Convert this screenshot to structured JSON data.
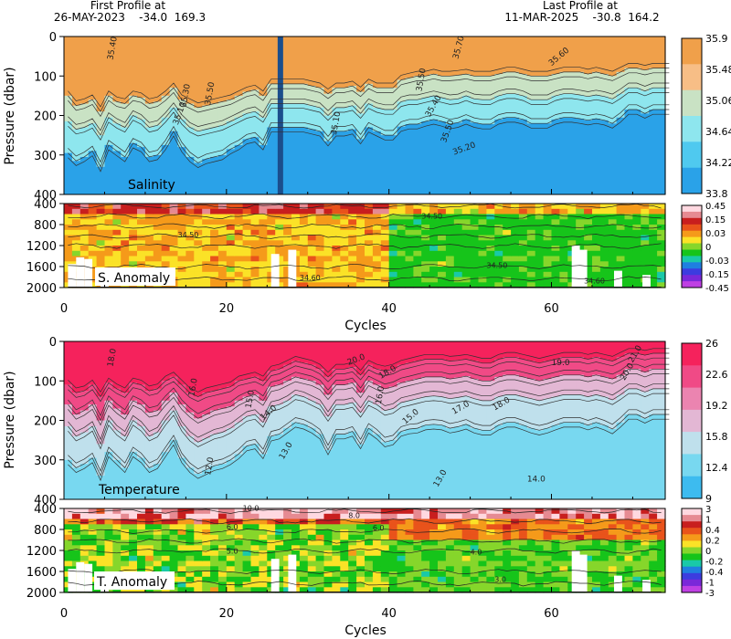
{
  "header": {
    "first_label": "First Profile at",
    "first_value": "26-MAY-2023    -34.0  169.3",
    "last_label": "Last Profile at",
    "last_value": "11-MAR-2025    -30.8  164.2"
  },
  "chart_data": [
    {
      "id": "salinity",
      "type": "heatmap",
      "title": "Salinity",
      "ylabel": "Pressure (dbar)",
      "xlim": [
        0,
        74
      ],
      "ylim": [
        400,
        0
      ],
      "yticks": [
        0,
        100,
        200,
        300,
        400
      ],
      "colorbar_ticks": [
        "35.9",
        "35.48",
        "35.06",
        "34.64",
        "34.22",
        "33.8"
      ],
      "colorbar_colors": [
        "#f0a04a",
        "#f7be86",
        "#c9e2c4",
        "#8ee6ee",
        "#4fc9ef",
        "#2aa2e8"
      ],
      "contour_levels": [
        "35.40",
        "35.50",
        "35.70",
        "35.60",
        "35.30",
        "35.10",
        "35.20"
      ],
      "contour_labels": [
        {
          "text": "35.40",
          "x": 6,
          "y": 60,
          "rot": -80
        },
        {
          "text": "35.70",
          "x": 48.5,
          "y": 58,
          "rot": -75
        },
        {
          "text": "35.60",
          "x": 60,
          "y": 75,
          "rot": -40
        },
        {
          "text": "35.50",
          "x": 44,
          "y": 140,
          "rot": -80
        },
        {
          "text": "35.30",
          "x": 15,
          "y": 180,
          "rot": -80
        },
        {
          "text": "35.50",
          "x": 18,
          "y": 175,
          "rot": -80
        },
        {
          "text": "35.10",
          "x": 14,
          "y": 225,
          "rot": -70
        },
        {
          "text": "35.40",
          "x": 45,
          "y": 205,
          "rot": -60
        },
        {
          "text": "35.50",
          "x": 47,
          "y": 270,
          "rot": -70
        },
        {
          "text": "35.20",
          "x": 48,
          "y": 300,
          "rot": -20
        },
        {
          "text": "35.10",
          "x": 33.5,
          "y": 250,
          "rot": -80
        }
      ],
      "depth_series": [
        {
          "level": "35.5",
          "values": [
            150,
            175,
            170,
            160,
            190,
            150,
            165,
            170,
            150,
            155,
            170,
            165,
            150,
            130,
            160,
            170,
            180,
            175,
            170,
            165,
            160,
            150,
            140,
            135,
            150,
            120,
            120,
            120,
            120,
            120,
            125,
            130,
            145,
            130,
            130,
            125,
            140,
            120,
            130,
            130,
            130,
            110,
            105,
            100,
            100,
            95,
            100,
            100,
            98,
            95,
            100,
            100,
            100,
            95,
            90,
            90,
            95,
            100,
            100,
            100,
            95,
            90,
            90,
            90,
            95,
            90,
            95,
            100,
            90,
            80,
            80,
            85,
            80,
            80,
            80
          ]
        },
        {
          "level": "35.3",
          "values": [
            215,
            235,
            230,
            220,
            250,
            205,
            220,
            230,
            200,
            210,
            230,
            225,
            205,
            180,
            210,
            230,
            240,
            235,
            230,
            225,
            215,
            205,
            195,
            190,
            205,
            170,
            170,
            170,
            170,
            170,
            175,
            180,
            200,
            180,
            180,
            175,
            195,
            170,
            180,
            185,
            185,
            165,
            160,
            160,
            155,
            150,
            155,
            160,
            158,
            150,
            158,
            160,
            160,
            150,
            145,
            145,
            150,
            160,
            160,
            160,
            150,
            145,
            145,
            148,
            152,
            148,
            152,
            158,
            145,
            130,
            130,
            138,
            130,
            130,
            130
          ]
        },
        {
          "level": "35.1",
          "values": [
            295,
            315,
            305,
            290,
            330,
            275,
            290,
            305,
            270,
            280,
            305,
            300,
            275,
            240,
            280,
            305,
            320,
            310,
            305,
            300,
            285,
            275,
            260,
            255,
            275,
            230,
            230,
            230,
            230,
            230,
            235,
            240,
            265,
            240,
            240,
            235,
            260,
            230,
            240,
            250,
            250,
            228,
            222,
            222,
            215,
            210,
            215,
            222,
            218,
            210,
            218,
            222,
            222,
            210,
            205,
            205,
            210,
            220,
            220,
            220,
            210,
            205,
            205,
            208,
            212,
            208,
            212,
            220,
            205,
            185,
            185,
            195,
            185,
            185,
            185
          ]
        }
      ]
    },
    {
      "id": "salinity_anomaly",
      "type": "heatmap",
      "title": "S. Anomaly",
      "ylim": [
        2000,
        400
      ],
      "yticks": [
        400,
        800,
        1200,
        1600,
        2000
      ],
      "colorbar_ticks": [
        "0.45",
        "0.15",
        "0.03",
        "0",
        "-0.03",
        "-0.15",
        "-0.45"
      ],
      "colorbar_colors": [
        "#ffd8e0",
        "#e68a92",
        "#c81e1e",
        "#e9531b",
        "#f59a1a",
        "#fbe227",
        "#86d62b",
        "#16c41a",
        "#19c9a8",
        "#1f7fe0",
        "#3c3cdf",
        "#7a28d9",
        "#bf40e3"
      ],
      "contour_labels": [
        {
          "text": "34.50",
          "x": 14,
          "y": 1040,
          "rot": 0
        },
        {
          "text": "34.60",
          "x": 29,
          "y": 1860,
          "rot": 0
        },
        {
          "text": "34.50",
          "x": 44,
          "y": 690,
          "rot": 0
        },
        {
          "text": "34.50",
          "x": 52,
          "y": 1630,
          "rot": 0
        },
        {
          "text": "34.60",
          "x": 64,
          "y": 1920,
          "rot": 0
        }
      ]
    },
    {
      "id": "temperature",
      "type": "heatmap",
      "title": "Temperature",
      "ylabel": "Pressure (dbar)",
      "xlim": [
        0,
        74
      ],
      "ylim": [
        400,
        0
      ],
      "yticks": [
        0,
        100,
        200,
        300,
        400
      ],
      "colorbar_ticks": [
        "26",
        "22.6",
        "19.2",
        "15.8",
        "12.4",
        "9"
      ],
      "colorbar_colors": [
        "#f5225c",
        "#f04a86",
        "#eb84b0",
        "#e3b7d4",
        "#bfe0ec",
        "#78d8f0",
        "#3dbbef"
      ],
      "contour_labels": [
        {
          "text": "18.0",
          "x": 6,
          "y": 65,
          "rot": -80
        },
        {
          "text": "16.0",
          "x": 16,
          "y": 140,
          "rot": -80
        },
        {
          "text": "15.0",
          "x": 23,
          "y": 170,
          "rot": -80
        },
        {
          "text": "14.0",
          "x": 24.5,
          "y": 200,
          "rot": -40
        },
        {
          "text": "13.0",
          "x": 27,
          "y": 300,
          "rot": -60
        },
        {
          "text": "12.0",
          "x": 18,
          "y": 340,
          "rot": -80
        },
        {
          "text": "20.0",
          "x": 35,
          "y": 60,
          "rot": -20
        },
        {
          "text": "18.0",
          "x": 39,
          "y": 95,
          "rot": -30
        },
        {
          "text": "16.0",
          "x": 39,
          "y": 160,
          "rot": -80
        },
        {
          "text": "15.0",
          "x": 42,
          "y": 210,
          "rot": -40
        },
        {
          "text": "19.0",
          "x": 60,
          "y": 60,
          "rot": 0
        },
        {
          "text": "18.0",
          "x": 53,
          "y": 175,
          "rot": -30
        },
        {
          "text": "17.0",
          "x": 48,
          "y": 185,
          "rot": -30
        },
        {
          "text": "14.0",
          "x": 57,
          "y": 355,
          "rot": 0
        },
        {
          "text": "13.0",
          "x": 46,
          "y": 370,
          "rot": -60
        },
        {
          "text": "21.0",
          "x": 70,
          "y": 55,
          "rot": -60
        },
        {
          "text": "20.0",
          "x": 69,
          "y": 100,
          "rot": -60
        }
      ],
      "depth_series": [
        {
          "level": "18",
          "values": [
            110,
            130,
            125,
            110,
            140,
            105,
            120,
            130,
            105,
            110,
            125,
            120,
            100,
            90,
            110,
            130,
            140,
            130,
            125,
            120,
            115,
            100,
            95,
            90,
            100,
            75,
            70,
            60,
            50,
            55,
            60,
            70,
            90,
            70,
            70,
            65,
            85,
            60,
            70,
            75,
            70,
            60,
            55,
            50,
            45,
            45,
            45,
            50,
            48,
            45,
            50,
            55,
            55,
            45,
            40,
            40,
            45,
            50,
            55,
            50,
            45,
            40,
            40,
            40,
            45,
            40,
            45,
            50,
            40,
            30,
            30,
            35,
            30,
            30,
            30
          ]
        },
        {
          "level": "16",
          "values": [
            160,
            185,
            175,
            160,
            200,
            150,
            170,
            185,
            150,
            160,
            180,
            175,
            150,
            130,
            160,
            180,
            195,
            185,
            175,
            170,
            165,
            150,
            140,
            135,
            150,
            115,
            110,
            100,
            90,
            95,
            100,
            110,
            135,
            110,
            110,
            105,
            130,
            100,
            110,
            120,
            115,
            105,
            100,
            95,
            90,
            90,
            90,
            95,
            92,
            88,
            95,
            100,
            100,
            90,
            85,
            85,
            90,
            95,
            100,
            95,
            90,
            85,
            85,
            85,
            90,
            85,
            90,
            95,
            85,
            70,
            70,
            78,
            70,
            70,
            70
          ]
        },
        {
          "level": "14",
          "values": [
            215,
            240,
            230,
            215,
            260,
            200,
            225,
            240,
            200,
            215,
            240,
            230,
            200,
            175,
            215,
            240,
            255,
            245,
            235,
            230,
            220,
            205,
            190,
            185,
            205,
            165,
            160,
            150,
            135,
            140,
            150,
            160,
            190,
            160,
            160,
            155,
            180,
            150,
            160,
            175,
            170,
            155,
            150,
            145,
            140,
            138,
            140,
            145,
            142,
            138,
            145,
            150,
            150,
            140,
            135,
            135,
            140,
            145,
            150,
            145,
            140,
            135,
            135,
            135,
            140,
            135,
            140,
            148,
            135,
            120,
            120,
            128,
            120,
            120,
            120
          ]
        },
        {
          "level": "12",
          "values": [
            300,
            320,
            310,
            295,
            340,
            280,
            300,
            320,
            280,
            295,
            320,
            310,
            280,
            250,
            295,
            320,
            335,
            325,
            315,
            310,
            300,
            285,
            265,
            260,
            285,
            240,
            235,
            220,
            205,
            210,
            220,
            235,
            275,
            235,
            235,
            228,
            260,
            220,
            235,
            255,
            250,
            228,
            222,
            220,
            212,
            210,
            212,
            220,
            216,
            210,
            220,
            225,
            225,
            212,
            205,
            205,
            212,
            220,
            225,
            220,
            212,
            205,
            205,
            205,
            212,
            205,
            212,
            222,
            205,
            185,
            185,
            195,
            185,
            185,
            185
          ]
        }
      ]
    },
    {
      "id": "temperature_anomaly",
      "type": "heatmap",
      "title": "T. Anomaly",
      "xlabel": "Cycles",
      "ylim": [
        2000,
        400
      ],
      "yticks": [
        400,
        800,
        1200,
        1600,
        2000
      ],
      "xticks": [
        0,
        20,
        40,
        60
      ],
      "colorbar_ticks": [
        "3",
        "1",
        "0.4",
        "0.2",
        "0",
        "-0.2",
        "-0.4",
        "-1",
        "-3"
      ],
      "colorbar_colors": [
        "#ffd8e0",
        "#e68a92",
        "#c81e1e",
        "#e9531b",
        "#f59a1a",
        "#fbe227",
        "#86d62b",
        "#16c41a",
        "#19c9a8",
        "#1f7fe0",
        "#3c3cdf",
        "#7a28d9",
        "#bf40e3"
      ],
      "contour_labels": [
        {
          "text": "10.0",
          "x": 22,
          "y": 440,
          "rot": 0
        },
        {
          "text": "8.0",
          "x": 35,
          "y": 580,
          "rot": 0
        },
        {
          "text": "6.0",
          "x": 20,
          "y": 800,
          "rot": 0
        },
        {
          "text": "6.0",
          "x": 38,
          "y": 820,
          "rot": 0
        },
        {
          "text": "5.0",
          "x": 20,
          "y": 1260,
          "rot": 0
        },
        {
          "text": "4.0",
          "x": 50,
          "y": 1280,
          "rot": 0
        },
        {
          "text": "3.0",
          "x": 53,
          "y": 1800,
          "rot": 0
        }
      ]
    }
  ],
  "axes": {
    "xlabel_top": "Cycles",
    "xlabel_bottom": "Cycles",
    "xticks": [
      "0",
      "20",
      "40",
      "60"
    ],
    "ylabel_top": "Pressure (dbar)",
    "ylabel_bottom": "Pressure (dbar)"
  }
}
